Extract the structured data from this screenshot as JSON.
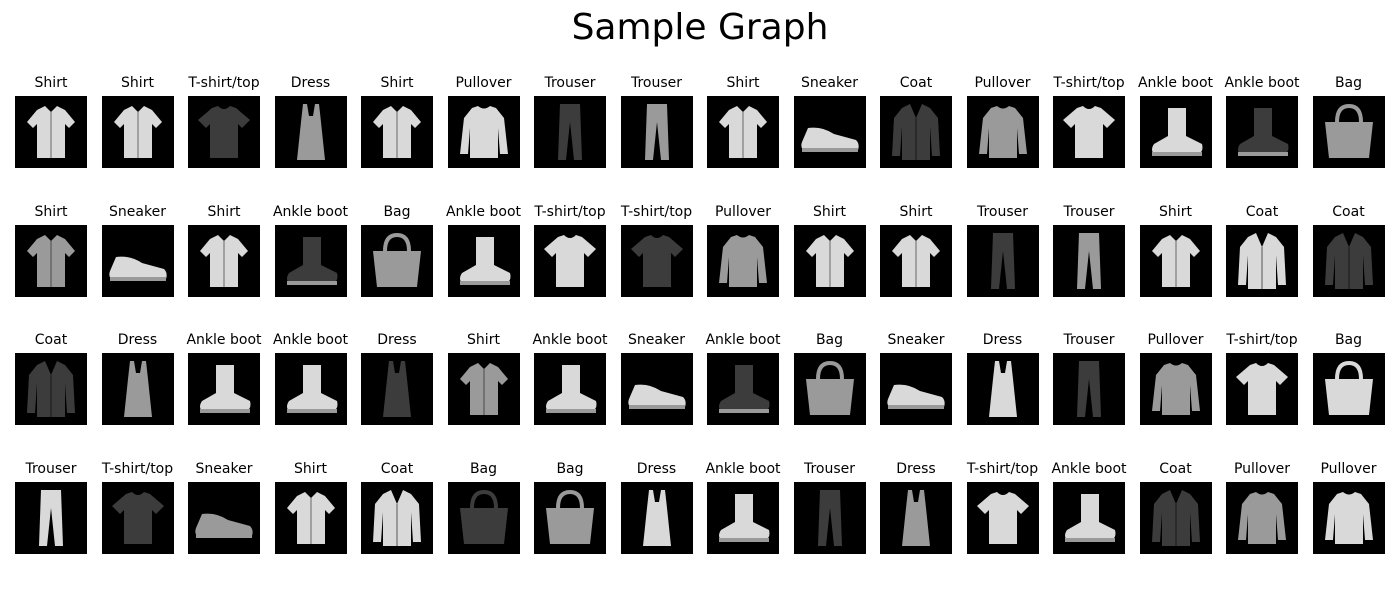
{
  "title": "Sample Graph",
  "grid": {
    "rows": 4,
    "cols": 16,
    "items": [
      {
        "label": "Shirt",
        "icon": "shirt-icon"
      },
      {
        "label": "Shirt",
        "icon": "shirt-icon"
      },
      {
        "label": "T-shirt/top",
        "icon": "tshirt-icon"
      },
      {
        "label": "Dress",
        "icon": "dress-icon"
      },
      {
        "label": "Shirt",
        "icon": "shirt-icon"
      },
      {
        "label": "Pullover",
        "icon": "pullover-icon"
      },
      {
        "label": "Trouser",
        "icon": "trouser-icon"
      },
      {
        "label": "Trouser",
        "icon": "trouser-icon"
      },
      {
        "label": "Shirt",
        "icon": "shirt-icon"
      },
      {
        "label": "Sneaker",
        "icon": "sneaker-icon"
      },
      {
        "label": "Coat",
        "icon": "coat-icon"
      },
      {
        "label": "Pullover",
        "icon": "pullover-icon"
      },
      {
        "label": "T-shirt/top",
        "icon": "tshirt-icon"
      },
      {
        "label": "Ankle boot",
        "icon": "ankle-boot-icon"
      },
      {
        "label": "Ankle boot",
        "icon": "ankle-boot-icon"
      },
      {
        "label": "Bag",
        "icon": "bag-icon"
      },
      {
        "label": "Shirt",
        "icon": "shirt-icon"
      },
      {
        "label": "Sneaker",
        "icon": "sneaker-icon"
      },
      {
        "label": "Shirt",
        "icon": "shirt-icon"
      },
      {
        "label": "Ankle boot",
        "icon": "ankle-boot-icon"
      },
      {
        "label": "Bag",
        "icon": "bag-icon"
      },
      {
        "label": "Ankle boot",
        "icon": "ankle-boot-icon"
      },
      {
        "label": "T-shirt/top",
        "icon": "tshirt-icon"
      },
      {
        "label": "T-shirt/top",
        "icon": "tshirt-icon"
      },
      {
        "label": "Pullover",
        "icon": "pullover-icon"
      },
      {
        "label": "Shirt",
        "icon": "shirt-icon"
      },
      {
        "label": "Shirt",
        "icon": "shirt-icon"
      },
      {
        "label": "Trouser",
        "icon": "trouser-icon"
      },
      {
        "label": "Trouser",
        "icon": "trouser-icon"
      },
      {
        "label": "Shirt",
        "icon": "shirt-icon"
      },
      {
        "label": "Coat",
        "icon": "coat-icon"
      },
      {
        "label": "Coat",
        "icon": "coat-icon"
      },
      {
        "label": "Coat",
        "icon": "coat-icon"
      },
      {
        "label": "Dress",
        "icon": "dress-icon"
      },
      {
        "label": "Ankle boot",
        "icon": "ankle-boot-icon"
      },
      {
        "label": "Ankle boot",
        "icon": "ankle-boot-icon"
      },
      {
        "label": "Dress",
        "icon": "dress-icon"
      },
      {
        "label": "Shirt",
        "icon": "shirt-icon"
      },
      {
        "label": "Ankle boot",
        "icon": "ankle-boot-icon"
      },
      {
        "label": "Sneaker",
        "icon": "sneaker-icon"
      },
      {
        "label": "Ankle boot",
        "icon": "ankle-boot-icon"
      },
      {
        "label": "Bag",
        "icon": "bag-icon"
      },
      {
        "label": "Sneaker",
        "icon": "sneaker-icon"
      },
      {
        "label": "Dress",
        "icon": "dress-icon"
      },
      {
        "label": "Trouser",
        "icon": "trouser-icon"
      },
      {
        "label": "Pullover",
        "icon": "pullover-icon"
      },
      {
        "label": "T-shirt/top",
        "icon": "tshirt-icon"
      },
      {
        "label": "Bag",
        "icon": "bag-icon"
      },
      {
        "label": "Trouser",
        "icon": "trouser-icon"
      },
      {
        "label": "T-shirt/top",
        "icon": "tshirt-icon"
      },
      {
        "label": "Sneaker",
        "icon": "sneaker-icon"
      },
      {
        "label": "Shirt",
        "icon": "shirt-icon"
      },
      {
        "label": "Coat",
        "icon": "coat-icon"
      },
      {
        "label": "Bag",
        "icon": "bag-icon"
      },
      {
        "label": "Bag",
        "icon": "bag-icon"
      },
      {
        "label": "Dress",
        "icon": "dress-icon"
      },
      {
        "label": "Ankle boot",
        "icon": "ankle-boot-icon"
      },
      {
        "label": "Trouser",
        "icon": "trouser-icon"
      },
      {
        "label": "Dress",
        "icon": "dress-icon"
      },
      {
        "label": "T-shirt/top",
        "icon": "tshirt-icon"
      },
      {
        "label": "Ankle boot",
        "icon": "ankle-boot-icon"
      },
      {
        "label": "Coat",
        "icon": "coat-icon"
      },
      {
        "label": "Pullover",
        "icon": "pullover-icon"
      },
      {
        "label": "Pullover",
        "icon": "pullover-icon"
      }
    ]
  },
  "colors": {
    "background": "#ffffff",
    "thumb_background": "#000000",
    "garment_light": "#d9d9d9",
    "garment_mid": "#9a9a9a",
    "garment_dark": "#3c3c3c"
  }
}
